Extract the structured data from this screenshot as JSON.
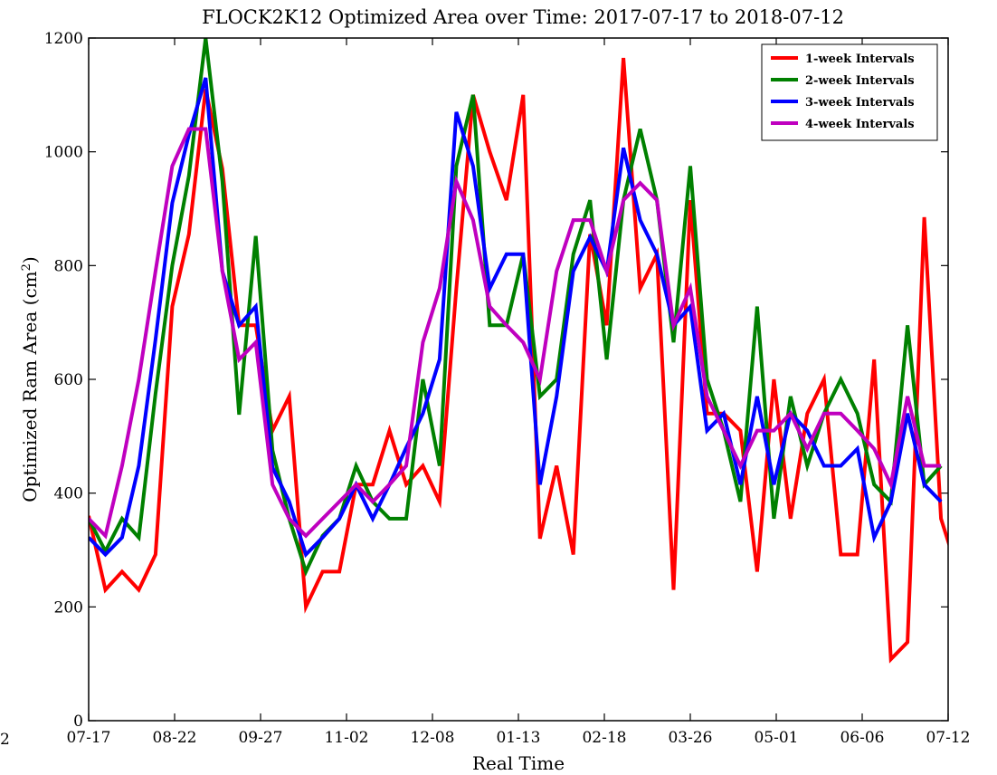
{
  "chart_data": {
    "type": "line",
    "title": "FLOCK2K12 Optimized Area over Time: 2017-07-17 to 2018-07-12",
    "xlabel": "Real Time",
    "ylabel_main": "Optimized Ram Area (cm",
    "ylabel_sup": "2",
    "ylabel_close": ")",
    "edge_label": "2",
    "xlim": [
      0,
      360
    ],
    "ylim": [
      0,
      1200
    ],
    "x_ticks": [
      {
        "day": 0,
        "label": "07-17"
      },
      {
        "day": 36,
        "label": "08-22"
      },
      {
        "day": 72,
        "label": "09-27"
      },
      {
        "day": 108,
        "label": "11-02"
      },
      {
        "day": 144,
        "label": "12-08"
      },
      {
        "day": 180,
        "label": "01-13"
      },
      {
        "day": 216,
        "label": "02-18"
      },
      {
        "day": 252,
        "label": "03-26"
      },
      {
        "day": 288,
        "label": "05-01"
      },
      {
        "day": 324,
        "label": "06-06"
      },
      {
        "day": 360,
        "label": "07-12"
      }
    ],
    "y_ticks": [
      0,
      200,
      400,
      600,
      800,
      1000,
      1200
    ],
    "legend_position": "top-right",
    "series": [
      {
        "name": "1-week Intervals",
        "color": "#ff0000",
        "points": [
          [
            0,
            360
          ],
          [
            7,
            230
          ],
          [
            14,
            262
          ],
          [
            21,
            230
          ],
          [
            28,
            292
          ],
          [
            35,
            728
          ],
          [
            42,
            855
          ],
          [
            49,
            1110
          ],
          [
            56,
            970
          ],
          [
            63,
            695
          ],
          [
            70,
            695
          ],
          [
            77,
            510
          ],
          [
            84,
            570
          ],
          [
            91,
            200
          ],
          [
            98,
            262
          ],
          [
            105,
            262
          ],
          [
            112,
            415
          ],
          [
            119,
            415
          ],
          [
            126,
            510
          ],
          [
            133,
            415
          ],
          [
            140,
            448
          ],
          [
            147,
            385
          ],
          [
            154,
            760
          ],
          [
            161,
            1100
          ],
          [
            168,
            1000
          ],
          [
            175,
            915
          ],
          [
            182,
            1100
          ],
          [
            189,
            320
          ],
          [
            196,
            448
          ],
          [
            203,
            292
          ],
          [
            210,
            855
          ],
          [
            217,
            695
          ],
          [
            224,
            1165
          ],
          [
            231,
            760
          ],
          [
            238,
            820
          ],
          [
            245,
            230
          ],
          [
            252,
            915
          ],
          [
            259,
            540
          ],
          [
            266,
            540
          ],
          [
            273,
            510
          ],
          [
            280,
            262
          ],
          [
            287,
            600
          ],
          [
            294,
            355
          ],
          [
            301,
            540
          ],
          [
            308,
            600
          ],
          [
            315,
            292
          ],
          [
            322,
            292
          ],
          [
            329,
            635
          ],
          [
            336,
            108
          ],
          [
            343,
            138
          ],
          [
            350,
            885
          ],
          [
            357,
            355
          ],
          [
            364,
            262
          ]
        ]
      },
      {
        "name": "2-week Intervals",
        "color": "#008000",
        "points": [
          [
            0,
            355
          ],
          [
            7,
            298
          ],
          [
            14,
            355
          ],
          [
            21,
            322
          ],
          [
            28,
            575
          ],
          [
            35,
            800
          ],
          [
            42,
            958
          ],
          [
            49,
            1200
          ],
          [
            56,
            948
          ],
          [
            63,
            538
          ],
          [
            70,
            852
          ],
          [
            77,
            475
          ],
          [
            84,
            355
          ],
          [
            91,
            262
          ],
          [
            98,
            325
          ],
          [
            105,
            355
          ],
          [
            112,
            448
          ],
          [
            119,
            385
          ],
          [
            126,
            355
          ],
          [
            133,
            355
          ],
          [
            140,
            600
          ],
          [
            147,
            448
          ],
          [
            154,
            975
          ],
          [
            161,
            1100
          ],
          [
            168,
            695
          ],
          [
            175,
            695
          ],
          [
            182,
            820
          ],
          [
            189,
            570
          ],
          [
            196,
            600
          ],
          [
            203,
            820
          ],
          [
            210,
            915
          ],
          [
            217,
            635
          ],
          [
            224,
            915
          ],
          [
            231,
            1040
          ],
          [
            238,
            915
          ],
          [
            245,
            665
          ],
          [
            252,
            975
          ],
          [
            259,
            600
          ],
          [
            266,
            510
          ],
          [
            273,
            385
          ],
          [
            280,
            728
          ],
          [
            287,
            355
          ],
          [
            294,
            570
          ],
          [
            301,
            448
          ],
          [
            308,
            540
          ],
          [
            315,
            600
          ],
          [
            322,
            540
          ],
          [
            329,
            415
          ],
          [
            336,
            385
          ],
          [
            343,
            695
          ],
          [
            350,
            415
          ],
          [
            357,
            448
          ]
        ]
      },
      {
        "name": "3-week Intervals",
        "color": "#0000ff",
        "points": [
          [
            0,
            322
          ],
          [
            7,
            292
          ],
          [
            14,
            322
          ],
          [
            21,
            448
          ],
          [
            28,
            670
          ],
          [
            35,
            910
          ],
          [
            42,
            1030
          ],
          [
            49,
            1130
          ],
          [
            56,
            790
          ],
          [
            63,
            695
          ],
          [
            70,
            728
          ],
          [
            77,
            445
          ],
          [
            84,
            385
          ],
          [
            91,
            292
          ],
          [
            98,
            322
          ],
          [
            105,
            355
          ],
          [
            112,
            415
          ],
          [
            119,
            355
          ],
          [
            126,
            415
          ],
          [
            133,
            480
          ],
          [
            140,
            540
          ],
          [
            147,
            635
          ],
          [
            154,
            1070
          ],
          [
            161,
            975
          ],
          [
            168,
            760
          ],
          [
            175,
            820
          ],
          [
            182,
            820
          ],
          [
            189,
            415
          ],
          [
            196,
            570
          ],
          [
            203,
            790
          ],
          [
            210,
            850
          ],
          [
            217,
            790
          ],
          [
            224,
            1007
          ],
          [
            231,
            880
          ],
          [
            238,
            820
          ],
          [
            245,
            695
          ],
          [
            252,
            728
          ],
          [
            259,
            510
          ],
          [
            266,
            540
          ],
          [
            273,
            415
          ],
          [
            280,
            570
          ],
          [
            287,
            415
          ],
          [
            294,
            540
          ],
          [
            301,
            510
          ],
          [
            308,
            448
          ],
          [
            315,
            448
          ],
          [
            322,
            478
          ],
          [
            329,
            322
          ],
          [
            336,
            385
          ],
          [
            343,
            540
          ],
          [
            350,
            415
          ],
          [
            357,
            385
          ]
        ]
      },
      {
        "name": "4-week Intervals",
        "color": "#bf00bf",
        "points": [
          [
            0,
            355
          ],
          [
            7,
            325
          ],
          [
            14,
            448
          ],
          [
            21,
            600
          ],
          [
            28,
            790
          ],
          [
            35,
            975
          ],
          [
            42,
            1040
          ],
          [
            49,
            1040
          ],
          [
            56,
            790
          ],
          [
            63,
            635
          ],
          [
            70,
            665
          ],
          [
            77,
            415
          ],
          [
            84,
            355
          ],
          [
            91,
            325
          ],
          [
            98,
            355
          ],
          [
            105,
            385
          ],
          [
            112,
            415
          ],
          [
            119,
            385
          ],
          [
            126,
            415
          ],
          [
            133,
            448
          ],
          [
            140,
            665
          ],
          [
            147,
            760
          ],
          [
            154,
            948
          ],
          [
            161,
            880
          ],
          [
            168,
            728
          ],
          [
            175,
            695
          ],
          [
            182,
            665
          ],
          [
            189,
            600
          ],
          [
            196,
            790
          ],
          [
            203,
            880
          ],
          [
            210,
            880
          ],
          [
            217,
            790
          ],
          [
            224,
            915
          ],
          [
            231,
            945
          ],
          [
            238,
            915
          ],
          [
            245,
            695
          ],
          [
            252,
            760
          ],
          [
            259,
            570
          ],
          [
            266,
            510
          ],
          [
            273,
            448
          ],
          [
            280,
            510
          ],
          [
            287,
            510
          ],
          [
            294,
            540
          ],
          [
            301,
            478
          ],
          [
            308,
            540
          ],
          [
            315,
            540
          ],
          [
            322,
            510
          ],
          [
            329,
            478
          ],
          [
            336,
            415
          ],
          [
            343,
            570
          ],
          [
            350,
            448
          ],
          [
            357,
            448
          ]
        ]
      }
    ]
  }
}
